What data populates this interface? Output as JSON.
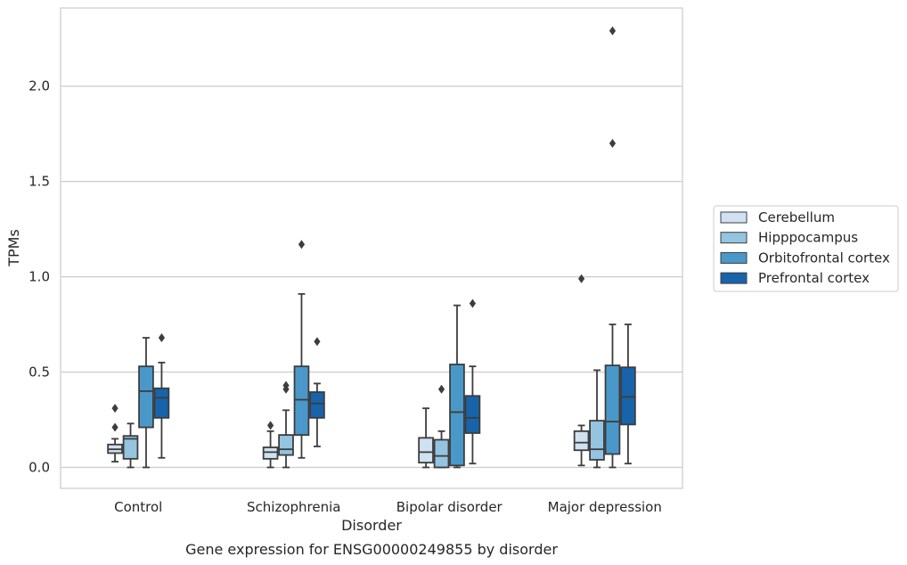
{
  "chart_data": {
    "type": "box",
    "title": "",
    "caption": "Gene expression for ENSG00000249855 by disorder",
    "xlabel": "Disorder",
    "ylabel": "TPMs",
    "ylim": [
      -0.11,
      2.41
    ],
    "yticks": [
      0.0,
      0.5,
      1.0,
      1.5,
      2.0
    ],
    "ytick_labels": [
      "0.0",
      "0.5",
      "1.0",
      "1.5",
      "2.0"
    ],
    "grid": "horizontal",
    "legend_position": "right",
    "categories": [
      "Control",
      "Schizophrenia",
      "Bipolar disorder",
      "Major depression"
    ],
    "series": [
      {
        "name": "Cerebellum",
        "color": "#d0e1f2",
        "boxes": [
          {
            "whisker_low": 0.03,
            "q1": 0.075,
            "median": 0.095,
            "q3": 0.12,
            "whisker_high": 0.15,
            "outliers": [
              0.21,
              0.31
            ]
          },
          {
            "whisker_low": 0.0,
            "q1": 0.045,
            "median": 0.08,
            "q3": 0.105,
            "whisker_high": 0.19,
            "outliers": [
              0.22
            ]
          },
          {
            "whisker_low": 0.0,
            "q1": 0.025,
            "median": 0.08,
            "q3": 0.155,
            "whisker_high": 0.31,
            "outliers": []
          },
          {
            "whisker_low": 0.01,
            "q1": 0.09,
            "median": 0.13,
            "q3": 0.19,
            "whisker_high": 0.22,
            "outliers": [
              0.99
            ]
          }
        ]
      },
      {
        "name": "Hipppocampus",
        "color": "#94c4df",
        "boxes": [
          {
            "whisker_low": 0.0,
            "q1": 0.045,
            "median": 0.15,
            "q3": 0.165,
            "whisker_high": 0.23,
            "outliers": []
          },
          {
            "whisker_low": 0.0,
            "q1": 0.065,
            "median": 0.095,
            "q3": 0.17,
            "whisker_high": 0.3,
            "outliers": [
              0.41,
              0.43
            ]
          },
          {
            "whisker_low": 0.0,
            "q1": 0.0,
            "median": 0.06,
            "q3": 0.145,
            "whisker_high": 0.19,
            "outliers": [
              0.41
            ]
          },
          {
            "whisker_low": 0.0,
            "q1": 0.04,
            "median": 0.095,
            "q3": 0.245,
            "whisker_high": 0.51,
            "outliers": []
          }
        ]
      },
      {
        "name": "Orbitofrontal cortex",
        "color": "#4a98c9",
        "boxes": [
          {
            "whisker_low": 0.0,
            "q1": 0.21,
            "median": 0.4,
            "q3": 0.53,
            "whisker_high": 0.68,
            "outliers": []
          },
          {
            "whisker_low": 0.05,
            "q1": 0.17,
            "median": 0.355,
            "q3": 0.53,
            "whisker_high": 0.91,
            "outliers": [
              1.17
            ]
          },
          {
            "whisker_low": 0.0,
            "q1": 0.01,
            "median": 0.29,
            "q3": 0.54,
            "whisker_high": 0.85,
            "outliers": []
          },
          {
            "whisker_low": 0.0,
            "q1": 0.07,
            "median": 0.24,
            "q3": 0.535,
            "whisker_high": 0.75,
            "outliers": [
              1.7,
              2.29
            ]
          }
        ]
      },
      {
        "name": "Prefrontal cortex",
        "color": "#1764ab",
        "boxes": [
          {
            "whisker_low": 0.05,
            "q1": 0.26,
            "median": 0.365,
            "q3": 0.415,
            "whisker_high": 0.55,
            "outliers": [
              0.68
            ]
          },
          {
            "whisker_low": 0.11,
            "q1": 0.26,
            "median": 0.335,
            "q3": 0.395,
            "whisker_high": 0.44,
            "outliers": [
              0.66
            ]
          },
          {
            "whisker_low": 0.02,
            "q1": 0.18,
            "median": 0.26,
            "q3": 0.375,
            "whisker_high": 0.53,
            "outliers": [
              0.86
            ]
          },
          {
            "whisker_low": 0.02,
            "q1": 0.225,
            "median": 0.37,
            "q3": 0.525,
            "whisker_high": 0.75,
            "outliers": []
          }
        ]
      }
    ]
  }
}
